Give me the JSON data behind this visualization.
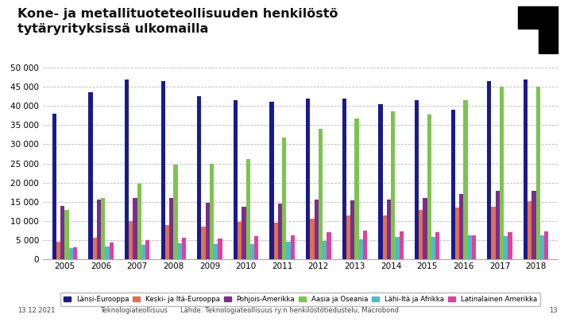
{
  "years": [
    2005,
    2006,
    2007,
    2008,
    2009,
    2010,
    2011,
    2012,
    2013,
    2014,
    2015,
    2016,
    2017,
    2018
  ],
  "series": {
    "Länsi-Eurooppa": [
      38000,
      43500,
      47000,
      46500,
      42500,
      41500,
      41000,
      42000,
      42000,
      40500,
      41500,
      39000,
      46500,
      47000
    ],
    "Keski- ja Itä-Eurooppa": [
      4500,
      5700,
      10000,
      9000,
      8500,
      9800,
      9500,
      10500,
      11500,
      11500,
      12800,
      13500,
      13700,
      15200
    ],
    "Pohjois-Amerikka": [
      14000,
      15500,
      16000,
      16000,
      14700,
      13800,
      14500,
      15500,
      15300,
      15500,
      16000,
      17000,
      17800,
      17800
    ],
    "Aasia ja Oseania": [
      12800,
      16000,
      19700,
      24700,
      25000,
      26200,
      31700,
      34000,
      36700,
      38500,
      37700,
      41500,
      45000,
      45000
    ],
    "Lähi-Itä ja Afrikka": [
      3000,
      3300,
      3700,
      4200,
      4000,
      4000,
      4500,
      4800,
      5200,
      5800,
      5800,
      6200,
      6100,
      6300
    ],
    "Latinalainen Amerikka": [
      3200,
      4400,
      5000,
      5700,
      5500,
      6000,
      6200,
      7100,
      7500,
      7200,
      7100,
      6300,
      7000,
      7300
    ]
  },
  "colors": {
    "Länsi-Eurooppa": "#1a1a8c",
    "Keski- ja Itä-Eurooppa": "#e07050",
    "Pohjois-Amerikka": "#7b2d8b",
    "Aasia ja Oseania": "#7dc44e",
    "Lähi-Itä ja Afrikka": "#4bbccc",
    "Latinalainen Amerikka": "#e040a0"
  },
  "title_line1": "Kone- ja metallituoteteollisuuden henkilöstö",
  "title_line2": "tytäryrityksissä ulkomailla",
  "ylim": [
    0,
    50000
  ],
  "yticks": [
    0,
    5000,
    10000,
    15000,
    20000,
    25000,
    30000,
    35000,
    40000,
    45000,
    50000
  ],
  "footer_left": "13.12.2021",
  "footer_center": "Teknologiateollisuus",
  "footer_source": "Lähde: Teknologiateollisuus ry:n henkilöstötiedustelu, Macrobond",
  "footer_pagenum": "13",
  "bg_color": "#ffffff",
  "grid_color": "#bbbbbb"
}
